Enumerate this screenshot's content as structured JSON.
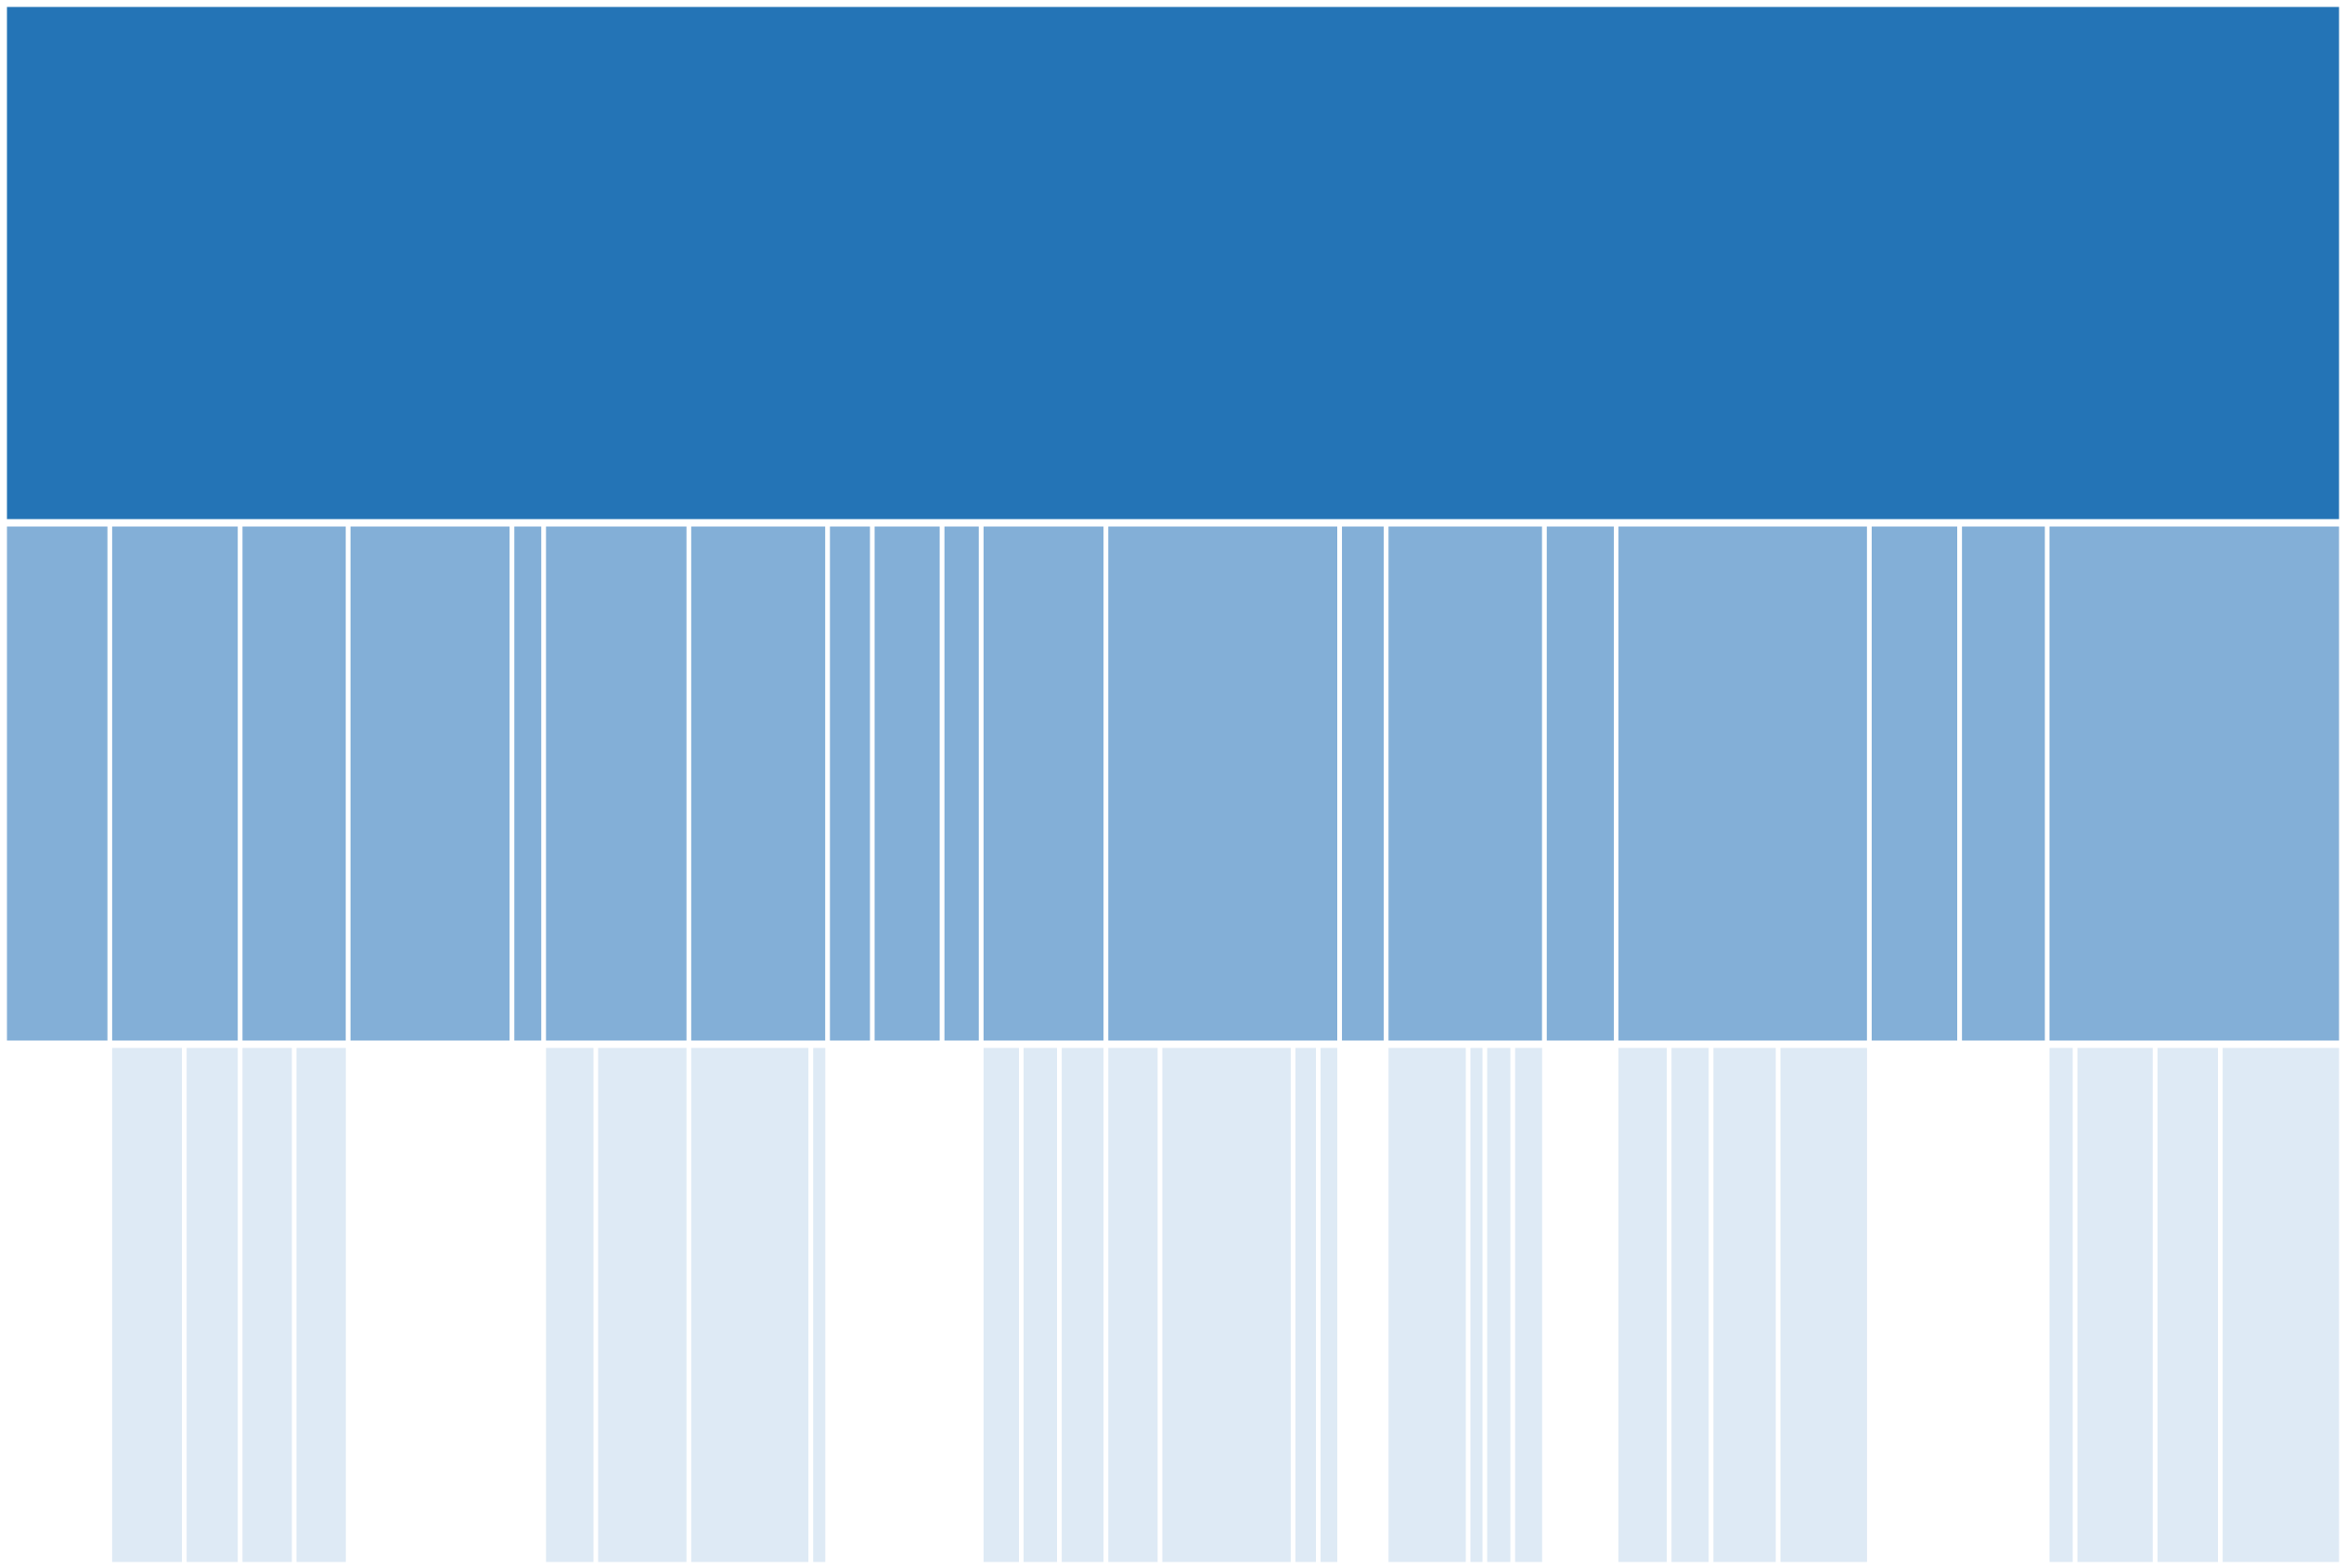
{
  "chart_data": {
    "type": "icicle",
    "title": "",
    "colors": {
      "level0": "#2474b6",
      "level1": "#83afd7",
      "level2": "#deeaf5",
      "separator": "#ffffff"
    },
    "root": {
      "value": 2510,
      "children": [
        {
          "value": 113,
          "children": []
        },
        {
          "value": 140,
          "children": [
            80,
            60
          ]
        },
        {
          "value": 116,
          "children": [
            58,
            58
          ]
        },
        {
          "value": 176,
          "children": []
        },
        {
          "value": 34,
          "children": []
        },
        {
          "value": 156,
          "children": [
            56,
            100
          ]
        },
        {
          "value": 149,
          "children": [
            131,
            18
          ]
        },
        {
          "value": 48,
          "children": []
        },
        {
          "value": 75,
          "children": []
        },
        {
          "value": 42,
          "children": []
        },
        {
          "value": 134,
          "children": [
            43,
            41,
            50
          ]
        },
        {
          "value": 251,
          "children": [
            58,
            143,
            27,
            23
          ]
        },
        {
          "value": 50,
          "children": []
        },
        {
          "value": 170,
          "children": [
            88,
            18,
            30,
            34
          ]
        },
        {
          "value": 77,
          "children": []
        },
        {
          "value": 272,
          "children": [
            57,
            45,
            72,
            98
          ]
        },
        {
          "value": 97,
          "children": []
        },
        {
          "value": 94,
          "children": []
        },
        {
          "value": 316,
          "children": [
            30,
            86,
            70,
            130
          ]
        }
      ]
    }
  }
}
